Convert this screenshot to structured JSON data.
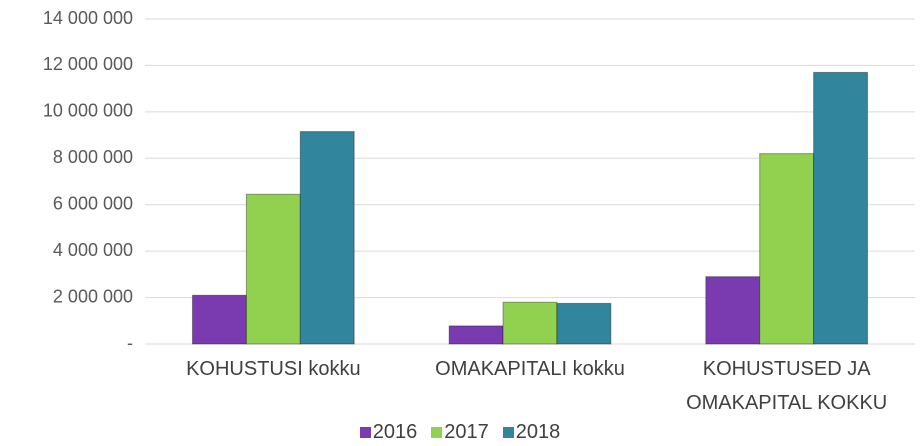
{
  "chart_data": {
    "type": "bar",
    "categories": [
      "KOHUSTUSI kokku",
      "OMAKAPITALI kokku",
      "KOHUSTUSED JA OMAKAPITAL KOKKU"
    ],
    "series": [
      {
        "name": "2016",
        "color": "#7b3bb0",
        "values": [
          2100000,
          780000,
          2900000
        ]
      },
      {
        "name": "2017",
        "color": "#92d050",
        "values": [
          6450000,
          1800000,
          8200000
        ]
      },
      {
        "name": "2018",
        "color": "#31859c",
        "values": [
          9150000,
          1750000,
          11700000
        ]
      }
    ],
    "ylim": [
      0,
      14000000
    ],
    "yticks": [
      {
        "value": 0,
        "label": "-"
      },
      {
        "value": 2000000,
        "label": "2 000 000"
      },
      {
        "value": 4000000,
        "label": "4 000 000"
      },
      {
        "value": 6000000,
        "label": "6 000 000"
      },
      {
        "value": 8000000,
        "label": "8 000 000"
      },
      {
        "value": 10000000,
        "label": "10 000 000"
      },
      {
        "value": 12000000,
        "label": "12 000 000"
      },
      {
        "value": 14000000,
        "label": "14 000 000"
      }
    ],
    "grid": true,
    "legend": "bottom"
  }
}
